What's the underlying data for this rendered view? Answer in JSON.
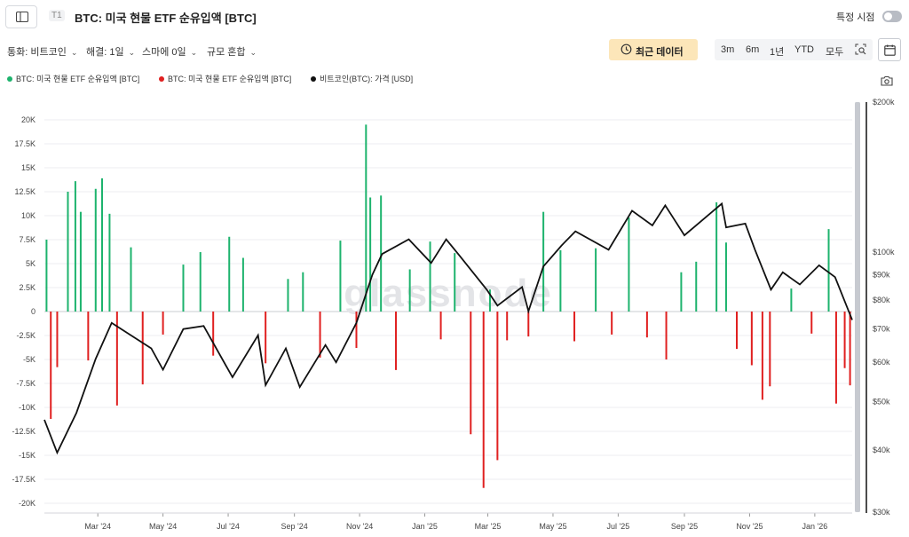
{
  "header": {
    "tier_badge": "T1",
    "title": "BTC: 미국 현물 ETF 순유입액 [BTC]",
    "toggle_label": "특정 시점"
  },
  "filters": [
    {
      "label": "통화: 비트코인"
    },
    {
      "label": "해결: 1일"
    },
    {
      "label": "스마에 0일"
    },
    {
      "label": "규모 혼합"
    }
  ],
  "recent_data_button": "최근 데이터",
  "range_options": [
    "3m",
    "6m",
    "1년",
    "YTD",
    "모두"
  ],
  "watermark": "glassnode",
  "colors": {
    "inflow": "#1db36d",
    "outflow": "#e02020",
    "price": "#111111",
    "grid": "#eceef1"
  },
  "icons": [
    "sidebar-toggle-icon",
    "clock-icon",
    "zoom-select-icon",
    "calendar-icon",
    "camera-icon"
  ],
  "chart_data": {
    "type": "bar",
    "legend": [
      {
        "label": "BTC: 미국 현물 ETF 순유입액 [BTC]",
        "color": "#1db36d"
      },
      {
        "label": "BTC: 미국 현물 ETF 순유입액 [BTC]",
        "color": "#e02020"
      },
      {
        "label": "비트코인(BTC): 가격 [USD]",
        "color": "#111111"
      }
    ],
    "x_range": [
      "2024-01-11",
      "2026-02-05"
    ],
    "x_tick_labels": [
      "Mar '24",
      "May '24",
      "Jul '24",
      "Sep '24",
      "Nov '24",
      "Jan '25",
      "Mar '25",
      "May '25",
      "Jul '25",
      "Sep '25",
      "Nov '25",
      "Jan '26"
    ],
    "y_left_ticks": [
      20000,
      17500,
      15000,
      12500,
      10000,
      7500,
      5000,
      2500,
      0,
      -2500,
      -5000,
      -7500,
      -10000,
      -12500,
      -15000,
      -17500,
      -20000
    ],
    "y_left_tick_labels": [
      "20K",
      "17.5K",
      "15K",
      "12.5K",
      "10K",
      "7.5K",
      "5K",
      "2.5K",
      "0",
      "-2.5K",
      "-5K",
      "-7.5K",
      "-10K",
      "-12.5K",
      "-15K",
      "-17.5K",
      "-20K"
    ],
    "y_right_scale": "log",
    "y_right_ticks": [
      200000,
      100000,
      90000,
      80000,
      70000,
      60000,
      50000,
      40000,
      30000
    ],
    "y_right_tick_labels": [
      "$200k",
      "$100k",
      "$90k",
      "$80k",
      "$70k",
      "$60k",
      "$50k",
      "$40k",
      "$30k"
    ],
    "series": [
      {
        "name": "BTC: 미국 현물 ETF 순유입액 [BTC]",
        "kind": "bar",
        "x": [
          "2024-01-13",
          "2024-01-17",
          "2024-01-23",
          "2024-02-02",
          "2024-02-09",
          "2024-02-14",
          "2024-02-21",
          "2024-02-28",
          "2024-03-05",
          "2024-03-12",
          "2024-03-19",
          "2024-04-01",
          "2024-04-12",
          "2024-05-01",
          "2024-05-20",
          "2024-06-05",
          "2024-06-17",
          "2024-07-02",
          "2024-07-15",
          "2024-08-05",
          "2024-08-26",
          "2024-09-09",
          "2024-09-25",
          "2024-10-14",
          "2024-10-29",
          "2024-11-07",
          "2024-11-11",
          "2024-11-21",
          "2024-12-05",
          "2024-12-18",
          "2025-01-06",
          "2025-01-16",
          "2025-01-29",
          "2025-02-13",
          "2025-02-25",
          "2025-03-03",
          "2025-03-10",
          "2025-03-19",
          "2025-04-08",
          "2025-04-22",
          "2025-05-08",
          "2025-05-21",
          "2025-06-10",
          "2025-06-25",
          "2025-07-11",
          "2025-07-28",
          "2025-08-15",
          "2025-08-29",
          "2025-09-12",
          "2025-10-01",
          "2025-10-10",
          "2025-10-20",
          "2025-11-03",
          "2025-11-13",
          "2025-11-20",
          "2025-12-10",
          "2025-12-29",
          "2026-01-14",
          "2026-01-21",
          "2026-01-29",
          "2026-02-03"
        ],
        "values": [
          7500,
          -11200,
          -5800,
          12500,
          13600,
          10400,
          -5100,
          12800,
          13900,
          10200,
          -9800,
          6700,
          -7600,
          -2400,
          4900,
          6200,
          -4600,
          7800,
          5600,
          -5400,
          3400,
          4100,
          -4800,
          7400,
          -3800,
          19500,
          11900,
          12100,
          -6100,
          4400,
          7300,
          -2900,
          6100,
          -12800,
          -18400,
          2300,
          -15500,
          -3000,
          -2600,
          10400,
          6400,
          -3100,
          6600,
          -2400,
          9800,
          -2700,
          -5000,
          4100,
          5200,
          11400,
          7200,
          -3900,
          -5600,
          -9200,
          -7800,
          2400,
          -2300,
          8600,
          -9600,
          -5900,
          -7700
        ]
      },
      {
        "name": "비트코인(BTC): 가격 [USD]",
        "kind": "line",
        "axis": "right",
        "x": [
          "2024-01-11",
          "2024-01-23",
          "2024-02-10",
          "2024-02-28",
          "2024-03-14",
          "2024-04-20",
          "2024-05-01",
          "2024-05-20",
          "2024-06-08",
          "2024-07-05",
          "2024-07-29",
          "2024-08-05",
          "2024-08-24",
          "2024-09-06",
          "2024-09-30",
          "2024-10-10",
          "2024-10-29",
          "2024-11-13",
          "2024-11-22",
          "2024-12-17",
          "2025-01-07",
          "2025-01-21",
          "2025-02-03",
          "2025-02-28",
          "2025-03-10",
          "2025-04-02",
          "2025-04-08",
          "2025-04-22",
          "2025-05-09",
          "2025-05-22",
          "2025-06-22",
          "2025-07-14",
          "2025-08-02",
          "2025-08-14",
          "2025-09-01",
          "2025-10-06",
          "2025-10-10",
          "2025-10-28",
          "2025-11-06",
          "2025-11-21",
          "2025-12-02",
          "2025-12-18",
          "2026-01-05",
          "2026-01-20",
          "2026-02-05"
        ],
        "values": [
          46000,
          39500,
          47500,
          61000,
          72000,
          64000,
          58000,
          70000,
          71000,
          56000,
          68000,
          54000,
          64000,
          53500,
          65000,
          60000,
          72000,
          90000,
          99000,
          106000,
          95000,
          106000,
          98000,
          84000,
          78000,
          85000,
          76000,
          93500,
          103000,
          110000,
          101000,
          121000,
          113000,
          124000,
          108000,
          125000,
          112000,
          114000,
          101000,
          84000,
          91000,
          86000,
          94000,
          89000,
          73000
        ]
      }
    ]
  }
}
